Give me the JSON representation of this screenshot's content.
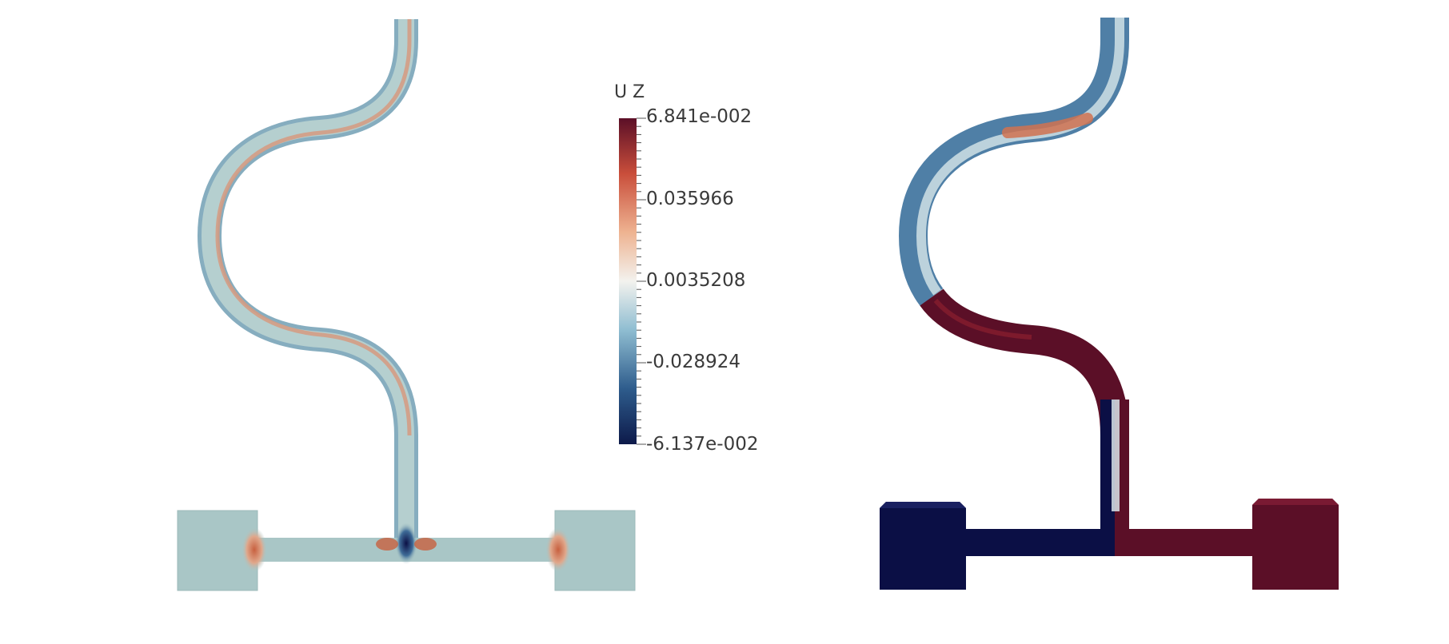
{
  "legend": {
    "title": "U Z",
    "max_label": "6.841e-002",
    "tick_labels": [
      "0.035966",
      "0.0035208",
      "-0.028924"
    ],
    "min_label": "-6.137e-002",
    "max_value": 0.06841,
    "min_value": -0.06137,
    "colormap": [
      "#0d1a4a",
      "#2e5c8c",
      "#8fbdd1",
      "#f3f2ee",
      "#eeb391",
      "#c94e3b",
      "#5b0f27"
    ]
  },
  "colors": {
    "base_left": "#a9c6c6",
    "band_warm": "#d98a6a",
    "band_cool": "#6f9fb6",
    "dark_blue": "#0b0f45",
    "dark_red": "#5b0f27",
    "mid_blue": "#7fa7bf",
    "light_blue": "#c9dde4"
  }
}
